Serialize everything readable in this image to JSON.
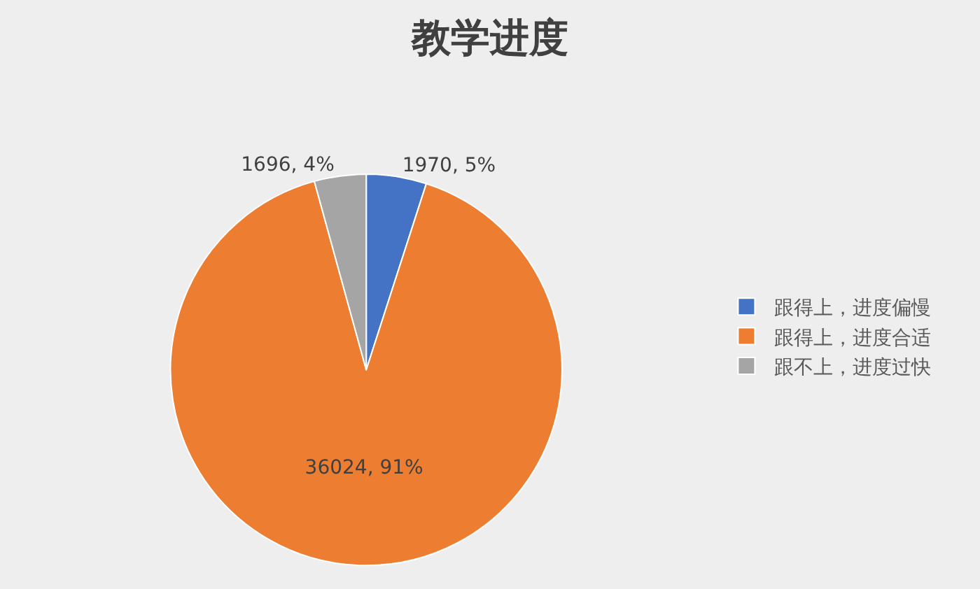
{
  "chart_data": {
    "type": "pie",
    "title": "教学进度",
    "categories": [
      "跟得上，进度偏慢",
      "跟得上，进度合适",
      "跟不上，进度过快"
    ],
    "values": [
      1970,
      36024,
      1696
    ],
    "colors": [
      "#4472c4",
      "#ed7d31",
      "#a5a5a5"
    ],
    "value_labels": [
      "1970, 5%",
      "36024, 91%",
      "1696, 4%"
    ],
    "legend": "right"
  }
}
